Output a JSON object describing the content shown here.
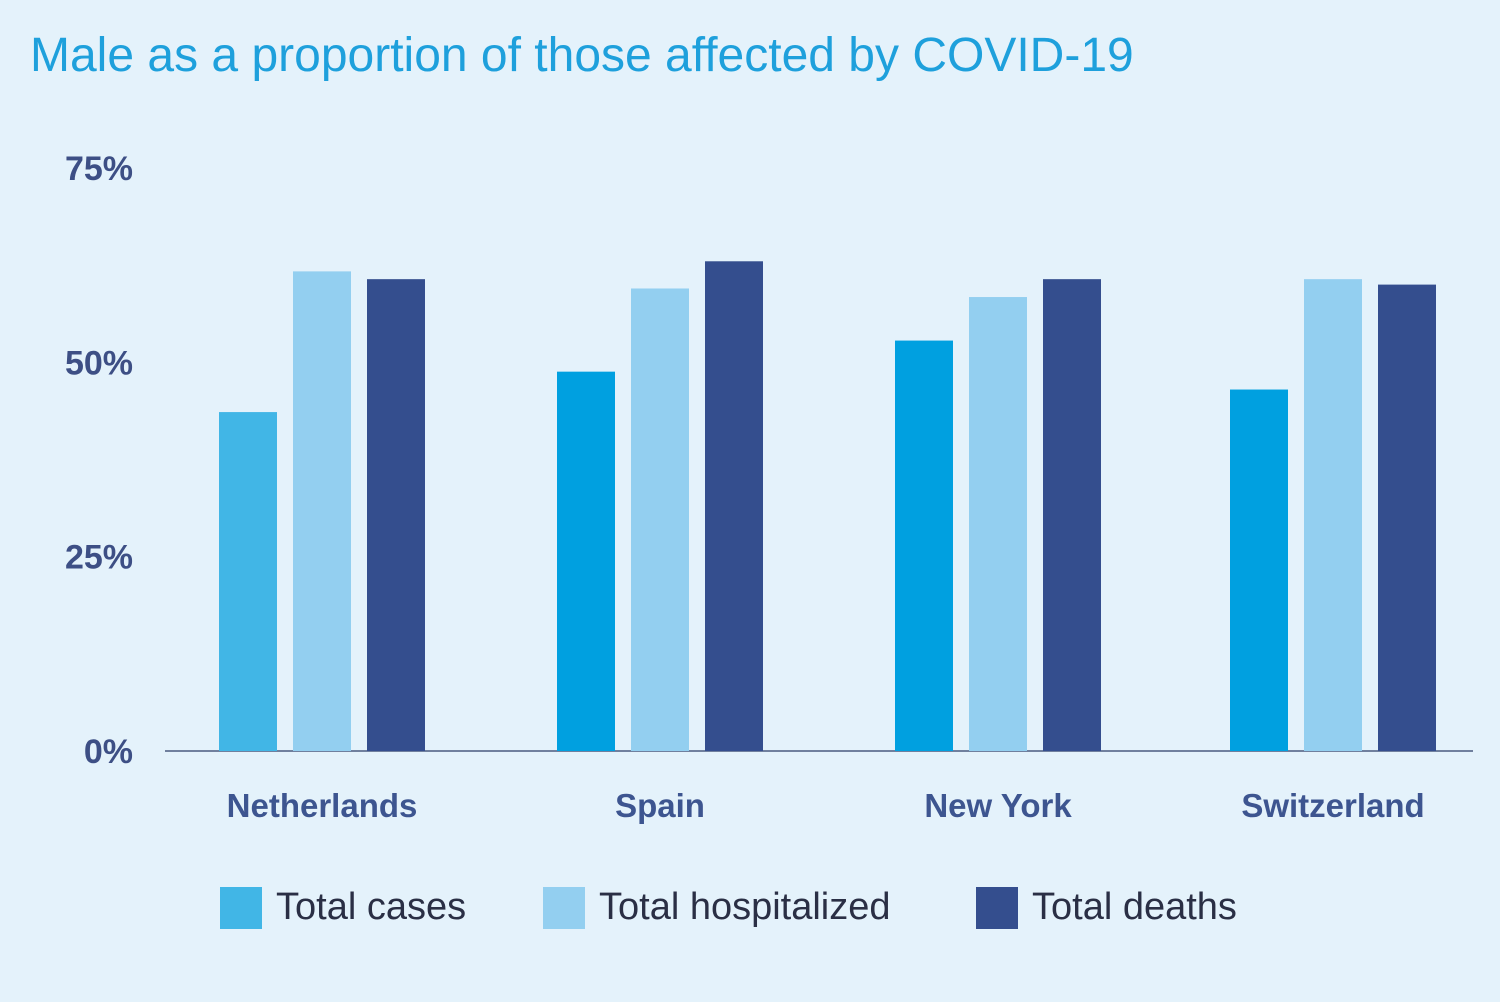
{
  "chart_data": {
    "type": "bar",
    "title": "Male as a proportion of those affected by COVID-19",
    "categories": [
      "Netherlands",
      "Spain",
      "New York",
      "Switzerland"
    ],
    "series": [
      {
        "name": "Total cases",
        "color": "#00a0e0",
        "values": [
          43.6,
          48.8,
          52.8,
          46.5
        ]
      },
      {
        "name": "Total hospitalized",
        "color": "#93cff0",
        "values": [
          61.7,
          59.5,
          58.4,
          60.7
        ]
      },
      {
        "name": "Total deaths",
        "color": "#344e8e",
        "values": [
          60.7,
          63.0,
          60.7,
          60.0
        ]
      }
    ],
    "ylim": [
      0,
      75
    ],
    "yticks": [
      "0%",
      "25%",
      "50%",
      "75%"
    ],
    "ytick_values": [
      0,
      25,
      50,
      75
    ],
    "xlabel": "",
    "ylabel": "",
    "grid": false,
    "legend": "bottom",
    "netherlands_cases_color": "#41b6e6"
  }
}
